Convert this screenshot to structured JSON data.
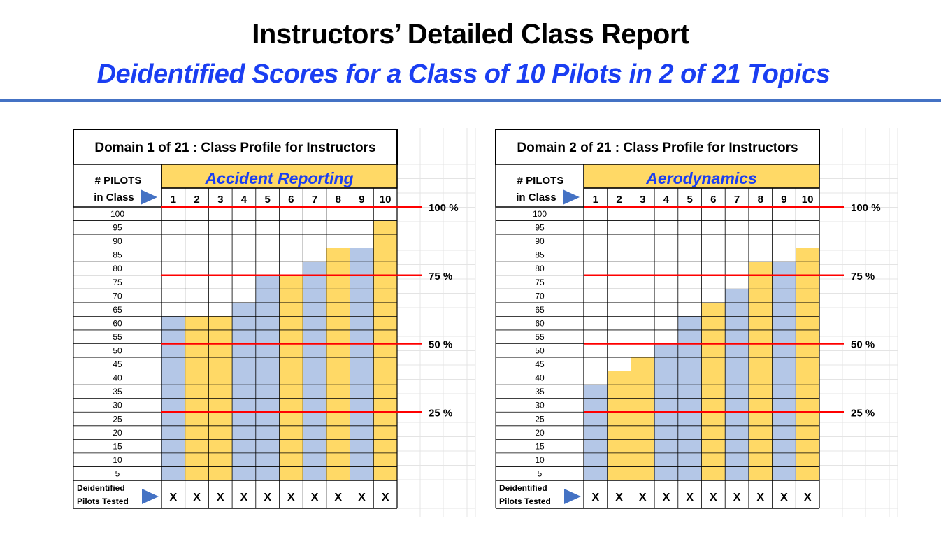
{
  "header": {
    "title": "Instructors’ Detailed Class Report",
    "subtitle": "Deidentified Scores for a Class of 10 Pilots in 2 of 21 Topics"
  },
  "colors": {
    "subtitle": "#1a3ef2",
    "rule": "#4472c4",
    "bar_blue": "#b4c7e7",
    "bar_gold": "#ffd966",
    "threshold_line": "#ff0000",
    "topic_text": "#1a3ef2"
  },
  "chart_data": [
    {
      "type": "bar",
      "title": "Domain 1 of 21 : Class Profile for Instructors",
      "topic": "Accident Reporting",
      "pilots_label_line1": "# PILOTS",
      "pilots_label_line2": "in Class",
      "categories": [
        "1",
        "2",
        "3",
        "4",
        "5",
        "6",
        "7",
        "8",
        "9",
        "10"
      ],
      "values": [
        60,
        60,
        60,
        65,
        75,
        75,
        80,
        85,
        85,
        95
      ],
      "bar_colors": [
        "blue",
        "gold",
        "gold",
        "blue",
        "blue",
        "gold",
        "blue",
        "gold",
        "blue",
        "gold"
      ],
      "y_ticks": [
        "100",
        "95",
        "90",
        "85",
        "80",
        "75",
        "70",
        "65",
        "60",
        "55",
        "50",
        "45",
        "40",
        "35",
        "30",
        "25",
        "20",
        "15",
        "10",
        "5"
      ],
      "ylim": [
        0,
        100
      ],
      "thresholds": [
        {
          "value": 100,
          "label": "100 %"
        },
        {
          "value": 75,
          "label": "75 %"
        },
        {
          "value": 50,
          "label": "50 %"
        },
        {
          "value": 25,
          "label": "25 %"
        }
      ],
      "footer_label_line1": "Deidentified",
      "footer_label_line2": "Pilots Tested",
      "footer_marks": [
        "X",
        "X",
        "X",
        "X",
        "X",
        "X",
        "X",
        "X",
        "X",
        "X"
      ]
    },
    {
      "type": "bar",
      "title": "Domain 2 of 21 : Class Profile for Instructors",
      "topic": "Aerodynamics",
      "pilots_label_line1": "# PILOTS",
      "pilots_label_line2": "in Class",
      "categories": [
        "1",
        "2",
        "3",
        "4",
        "5",
        "6",
        "7",
        "8",
        "9",
        "10"
      ],
      "values": [
        35,
        40,
        45,
        50,
        60,
        65,
        70,
        80,
        80,
        85
      ],
      "bar_colors": [
        "blue",
        "gold",
        "gold",
        "blue",
        "blue",
        "gold",
        "blue",
        "gold",
        "blue",
        "gold"
      ],
      "y_ticks": [
        "100",
        "95",
        "90",
        "85",
        "80",
        "75",
        "70",
        "65",
        "60",
        "55",
        "50",
        "45",
        "40",
        "35",
        "30",
        "25",
        "20",
        "15",
        "10",
        "5"
      ],
      "ylim": [
        0,
        100
      ],
      "thresholds": [
        {
          "value": 100,
          "label": "100 %"
        },
        {
          "value": 75,
          "label": "75 %"
        },
        {
          "value": 50,
          "label": "50 %"
        },
        {
          "value": 25,
          "label": "25 %"
        }
      ],
      "footer_label_line1": "Deidentified",
      "footer_label_line2": "Pilots Tested",
      "footer_marks": [
        "X",
        "X",
        "X",
        "X",
        "X",
        "X",
        "X",
        "X",
        "X",
        "X"
      ]
    }
  ]
}
